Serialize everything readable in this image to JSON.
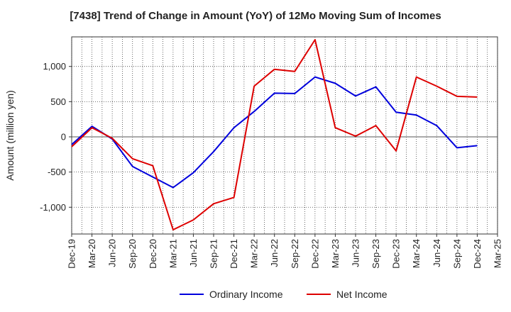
{
  "chart_data": {
    "type": "line",
    "title": "[7438]  Trend of Change in Amount (YoY) of 12Mo Moving Sum of Incomes",
    "xlabel": "",
    "ylabel": "Amount (million yen)",
    "x_ticks": [
      "Dec-19",
      "Mar-20",
      "Jun-20",
      "Sep-20",
      "Dec-20",
      "Mar-21",
      "Jun-21",
      "Sep-21",
      "Dec-21",
      "Mar-22",
      "Jun-22",
      "Sep-22",
      "Dec-22",
      "Mar-23",
      "Jun-23",
      "Sep-23",
      "Dec-23",
      "Mar-24",
      "Jun-24",
      "Sep-24",
      "Dec-24",
      "Mar-25"
    ],
    "y_ticks": [
      1000,
      500,
      0,
      -500,
      -1000
    ],
    "y_tick_labels": [
      "1,000",
      "500",
      "0",
      "-500",
      "-1,000"
    ],
    "ylim": [
      -1380,
      1420
    ],
    "grid": true,
    "legend_position": "bottom-center",
    "series": [
      {
        "name": "Ordinary Income",
        "color": "#0000dd",
        "values": [
          -110,
          150,
          -30,
          -420,
          -570,
          -720,
          -510,
          -210,
          130,
          360,
          620,
          615,
          850,
          760,
          580,
          710,
          350,
          310,
          160,
          -155,
          -125
        ]
      },
      {
        "name": "Net Income",
        "color": "#dd0000",
        "values": [
          -140,
          130,
          -20,
          -310,
          -410,
          -1320,
          -1180,
          -950,
          -860,
          720,
          960,
          930,
          1380,
          130,
          10,
          160,
          -200,
          850,
          720,
          575,
          565
        ]
      }
    ]
  }
}
